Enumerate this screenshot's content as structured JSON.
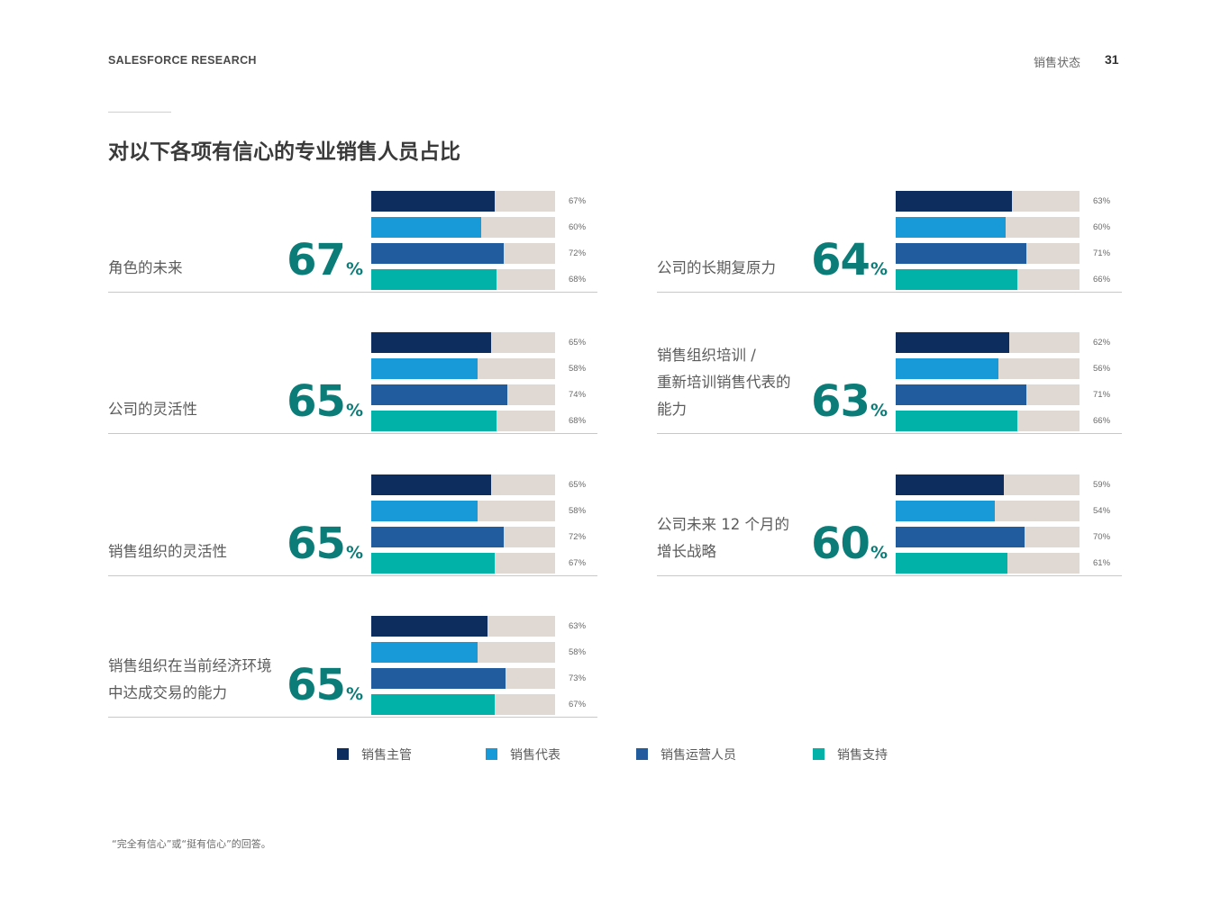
{
  "header": {
    "brand": "SALESFORCE RESEARCH",
    "section": "销售状态",
    "page": "31"
  },
  "title": "对以下各项有信心的专业销售人员占比",
  "colors": {
    "manager": "#0c2d5e",
    "rep": "#189ad8",
    "ops": "#205c9e",
    "support": "#00b2a8",
    "track": "#e0d9d3",
    "accent": "#0b7c78"
  },
  "chart_data": {
    "type": "bar",
    "title": "对以下各项有信心的专业销售人员占比",
    "series_names": [
      "销售主管",
      "销售代表",
      "销售运营人员",
      "销售支持"
    ],
    "xlim": [
      0,
      100
    ],
    "unit": "%",
    "items": [
      {
        "label": [
          "角色的未来"
        ],
        "overall": "67",
        "values": [
          67,
          60,
          72,
          68
        ]
      },
      {
        "label": [
          "公司的长期复原力"
        ],
        "overall": "64",
        "values": [
          63,
          60,
          71,
          66
        ]
      },
      {
        "label": [
          "公司的灵活性"
        ],
        "overall": "65",
        "values": [
          65,
          58,
          74,
          68
        ]
      },
      {
        "label": [
          "销售组织培训 /",
          "重新培训销售代表的",
          "能力"
        ],
        "overall": "63",
        "values": [
          62,
          56,
          71,
          66
        ]
      },
      {
        "label": [
          "销售组织的灵活性"
        ],
        "overall": "65",
        "values": [
          65,
          58,
          72,
          67
        ]
      },
      {
        "label": [
          "公司未来 12 个月的",
          "增长战略"
        ],
        "overall": "60",
        "values": [
          59,
          54,
          70,
          61
        ]
      },
      {
        "label": [
          "销售组织在当前经济环境",
          "中达成交易的能力"
        ],
        "overall": "65",
        "values": [
          63,
          58,
          73,
          67
        ]
      }
    ]
  },
  "legend": [
    {
      "label": "销售主管",
      "color": "#0c2d5e"
    },
    {
      "label": "销售代表",
      "color": "#189ad8"
    },
    {
      "label": "销售运营人员",
      "color": "#205c9e"
    },
    {
      "label": "销售支持",
      "color": "#00b2a8"
    }
  ],
  "footnote": "“完全有信心”或“挺有信心”的回答。"
}
